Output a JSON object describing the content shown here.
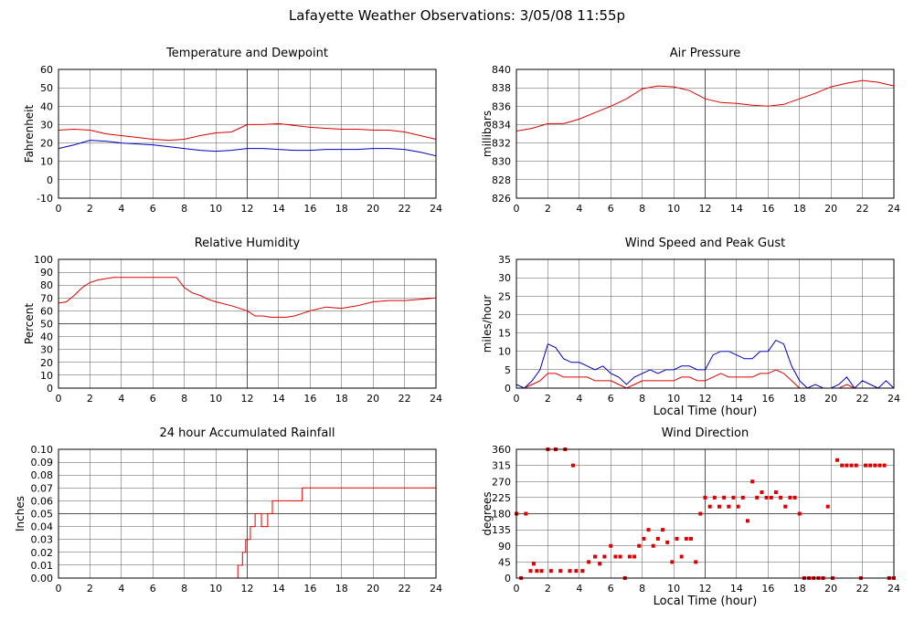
{
  "page_title": "Lafayette Weather Observations: 3/05/08 11:55p",
  "colors": {
    "red": "#dd0000",
    "blue": "#0000bb",
    "grid": "#555555",
    "frame": "#000000"
  },
  "chart_data": [
    {
      "type": "line",
      "title": "Temperature and Dewpoint",
      "xlabel": "",
      "ylabel": "Fahrenheit",
      "xlim": [
        0,
        24
      ],
      "ylim": [
        -10,
        60
      ],
      "xticks": [
        0,
        2,
        4,
        6,
        8,
        10,
        12,
        14,
        16,
        18,
        20,
        22,
        24
      ],
      "yticks": [
        -10,
        0,
        10,
        20,
        30,
        40,
        50,
        60
      ],
      "grid": true,
      "series": [
        {
          "color": "#dd0000",
          "x": [
            0,
            1,
            2,
            3,
            4,
            5,
            6,
            7,
            8,
            9,
            10,
            11,
            12,
            13,
            14,
            15,
            16,
            17,
            18,
            19,
            20,
            21,
            22,
            23,
            24
          ],
          "values": [
            27,
            27.5,
            27,
            25,
            24,
            23,
            22,
            21.5,
            22,
            24,
            25.5,
            26,
            30,
            30,
            30.5,
            29.5,
            28.5,
            28,
            27.5,
            27.5,
            27,
            27,
            26,
            24,
            22
          ]
        },
        {
          "color": "#0000bb",
          "x": [
            0,
            1,
            2,
            3,
            4,
            5,
            6,
            7,
            8,
            9,
            10,
            11,
            12,
            13,
            14,
            15,
            16,
            17,
            18,
            19,
            20,
            21,
            22,
            23,
            24
          ],
          "values": [
            17,
            19,
            21.5,
            21,
            20,
            19.5,
            19,
            18,
            17,
            16,
            15.5,
            16,
            17,
            17,
            16.5,
            16,
            16,
            16.5,
            16.5,
            16.5,
            17,
            17,
            16.5,
            15,
            13
          ]
        }
      ]
    },
    {
      "type": "line",
      "title": "Air Pressure",
      "xlabel": "",
      "ylabel": "millibars",
      "xlim": [
        0,
        24
      ],
      "ylim": [
        826,
        840
      ],
      "xticks": [
        0,
        2,
        4,
        6,
        8,
        10,
        12,
        14,
        16,
        18,
        20,
        22,
        24
      ],
      "yticks": [
        826,
        828,
        830,
        832,
        834,
        836,
        838,
        840
      ],
      "grid": true,
      "series": [
        {
          "color": "#dd0000",
          "x": [
            0,
            1,
            2,
            3,
            4,
            5,
            6,
            7,
            8,
            9,
            10,
            11,
            12,
            13,
            14,
            15,
            16,
            17,
            18,
            19,
            20,
            21,
            22,
            23,
            24
          ],
          "values": [
            833.3,
            833.6,
            834.1,
            834.1,
            834.6,
            835.3,
            836.0,
            836.8,
            837.9,
            838.2,
            838.1,
            837.7,
            836.8,
            836.4,
            836.3,
            836.1,
            836.0,
            836.2,
            836.8,
            837.4,
            838.1,
            838.5,
            838.8,
            838.6,
            838.2
          ]
        }
      ]
    },
    {
      "type": "line",
      "title": "Relative Humidity",
      "xlabel": "",
      "ylabel": "Percent",
      "xlim": [
        0,
        24
      ],
      "ylim": [
        0,
        100
      ],
      "xticks": [
        0,
        2,
        4,
        6,
        8,
        10,
        12,
        14,
        16,
        18,
        20,
        22,
        24
      ],
      "yticks": [
        0,
        10,
        20,
        30,
        40,
        50,
        60,
        70,
        80,
        90,
        100
      ],
      "grid": true,
      "series": [
        {
          "color": "#dd0000",
          "x": [
            0,
            0.5,
            1,
            1.5,
            2,
            2.5,
            3,
            3.5,
            4,
            5,
            6,
            7,
            7.5,
            8,
            8.5,
            9,
            9.5,
            10,
            11,
            12,
            12.5,
            13,
            13.5,
            14,
            14.5,
            15,
            15.5,
            16,
            17,
            18,
            19,
            20,
            21,
            22,
            23,
            24
          ],
          "values": [
            66,
            67,
            72,
            78,
            82,
            84,
            85,
            86,
            86,
            86,
            86,
            86,
            86,
            78,
            74,
            72,
            69,
            67,
            64,
            60,
            56,
            56,
            55,
            55,
            55,
            56,
            58,
            60,
            63,
            62,
            64,
            67,
            68,
            68,
            69,
            70
          ]
        }
      ]
    },
    {
      "type": "line",
      "title": "Wind Speed and Peak Gust",
      "xlabel": "Local Time (hour)",
      "ylabel": "miles/hour",
      "xlim": [
        0,
        24
      ],
      "ylim": [
        0,
        35
      ],
      "xticks": [
        0,
        2,
        4,
        6,
        8,
        10,
        12,
        14,
        16,
        18,
        20,
        22,
        24
      ],
      "yticks": [
        0,
        5,
        10,
        15,
        20,
        25,
        30,
        35
      ],
      "grid": true,
      "series": [
        {
          "color": "#0000bb",
          "x": [
            0,
            0.5,
            1,
            1.5,
            2,
            2.5,
            3,
            3.5,
            4,
            4.5,
            5,
            5.5,
            6,
            6.5,
            7,
            7.5,
            8,
            8.5,
            9,
            9.5,
            10,
            10.5,
            11,
            11.5,
            12,
            12.5,
            13,
            13.5,
            14,
            14.5,
            15,
            15.5,
            16,
            16.5,
            17,
            17.5,
            18,
            18.5,
            19,
            19.5,
            20,
            20.5,
            21,
            21.5,
            22,
            22.5,
            23,
            23.5,
            24
          ],
          "values": [
            1,
            0,
            2,
            5,
            12,
            11,
            8,
            7,
            7,
            6,
            5,
            6,
            4,
            3,
            1,
            3,
            4,
            5,
            4,
            5,
            5,
            6,
            6,
            5,
            5,
            9,
            10,
            10,
            9,
            8,
            8,
            10,
            10,
            13,
            12,
            6,
            2,
            0,
            1,
            0,
            0,
            1,
            3,
            0,
            2,
            1,
            0,
            2,
            0
          ]
        },
        {
          "color": "#dd0000",
          "x": [
            0,
            0.5,
            1,
            1.5,
            2,
            2.5,
            3,
            3.5,
            4,
            4.5,
            5,
            5.5,
            6,
            6.5,
            7,
            7.5,
            8,
            8.5,
            9,
            9.5,
            10,
            10.5,
            11,
            11.5,
            12,
            12.5,
            13,
            13.5,
            14,
            14.5,
            15,
            15.5,
            16,
            16.5,
            17,
            17.5,
            18,
            18.5,
            19,
            19.5,
            20,
            20.5,
            21,
            21.5,
            22,
            22.5,
            23,
            23.5,
            24
          ],
          "values": [
            0,
            0,
            1,
            2,
            4,
            4,
            3,
            3,
            3,
            3,
            2,
            2,
            2,
            1,
            0,
            1,
            2,
            2,
            2,
            2,
            2,
            3,
            3,
            2,
            2,
            3,
            4,
            3,
            3,
            3,
            3,
            4,
            4,
            5,
            4,
            2,
            0,
            0,
            0,
            0,
            0,
            0,
            1,
            0,
            0,
            0,
            0,
            0,
            0
          ]
        }
      ]
    },
    {
      "type": "line",
      "title": "24 hour Accumulated Rainfall",
      "xlabel": "",
      "ylabel": "Inches",
      "xlim": [
        0,
        24
      ],
      "ylim": [
        0,
        0.1
      ],
      "xticks": [
        0,
        2,
        4,
        6,
        8,
        10,
        12,
        14,
        16,
        18,
        20,
        22,
        24
      ],
      "yticks": [
        "0.00",
        "0.01",
        "0.02",
        "0.03",
        "0.04",
        "0.05",
        "0.06",
        "0.07",
        "0.08",
        "0.09",
        "0.10"
      ],
      "grid": true,
      "series": [
        {
          "color": "#dd0000",
          "x": [
            0,
            11.4,
            11.4,
            11.7,
            11.7,
            11.9,
            11.9,
            12.2,
            12.2,
            12.5,
            12.5,
            12.9,
            12.9,
            13.3,
            13.3,
            13.6,
            13.6,
            14.3,
            14.3,
            15.5,
            15.5,
            15.8,
            15.8,
            24
          ],
          "values": [
            0,
            0,
            0.01,
            0.01,
            0.02,
            0.02,
            0.03,
            0.03,
            0.04,
            0.04,
            0.05,
            0.05,
            0.04,
            0.04,
            0.05,
            0.05,
            0.06,
            0.06,
            0.06,
            0.06,
            0.07,
            0.07,
            0.07,
            0.07
          ]
        }
      ]
    },
    {
      "type": "scatter",
      "title": "Wind Direction",
      "xlabel": "Local Time (hour)",
      "ylabel": "degrees",
      "xlim": [
        0,
        24
      ],
      "ylim": [
        0,
        360
      ],
      "xticks": [
        0,
        2,
        4,
        6,
        8,
        10,
        12,
        14,
        16,
        18,
        20,
        22,
        24
      ],
      "yticks": [
        0,
        45,
        90,
        135,
        180,
        225,
        270,
        315,
        360
      ],
      "grid": true,
      "series": [
        {
          "color": "#dd0000",
          "x": [
            0,
            0.3,
            0.6,
            0.9,
            1.1,
            1.3,
            1.6,
            2,
            2.2,
            2.5,
            2.8,
            3.1,
            3.4,
            3.6,
            3.8,
            4.2,
            4.6,
            5,
            5.3,
            5.6,
            6,
            6.3,
            6.6,
            6.9,
            7.2,
            7.5,
            7.8,
            8.1,
            8.4,
            8.7,
            9,
            9.3,
            9.6,
            9.9,
            10.2,
            10.5,
            10.8,
            11.1,
            11.4,
            11.7,
            12,
            12.3,
            12.6,
            12.9,
            13.2,
            13.5,
            13.8,
            14.1,
            14.4,
            14.7,
            15,
            15.3,
            15.6,
            15.9,
            16.2,
            16.5,
            16.8,
            17.1,
            17.4,
            17.7,
            18,
            18.3,
            18.6,
            18.9,
            19.2,
            19.5,
            19.8,
            20.1,
            20.4,
            20.7,
            21,
            21.3,
            21.6,
            21.9,
            22.2,
            22.5,
            22.8,
            23.1,
            23.4,
            23.7,
            24
          ],
          "values": [
            180,
            0,
            180,
            20,
            40,
            20,
            20,
            360,
            20,
            360,
            20,
            360,
            20,
            315,
            20,
            20,
            45,
            60,
            40,
            60,
            90,
            60,
            60,
            0,
            60,
            60,
            90,
            110,
            135,
            90,
            110,
            135,
            100,
            45,
            110,
            60,
            110,
            110,
            45,
            180,
            225,
            200,
            225,
            200,
            225,
            200,
            225,
            200,
            225,
            160,
            270,
            225,
            240,
            225,
            225,
            240,
            225,
            200,
            225,
            225,
            180,
            0,
            0,
            0,
            0,
            0,
            200,
            0,
            330,
            315,
            315,
            315,
            315,
            0,
            315,
            315,
            315,
            315,
            315,
            0,
            0
          ]
        }
      ]
    }
  ]
}
